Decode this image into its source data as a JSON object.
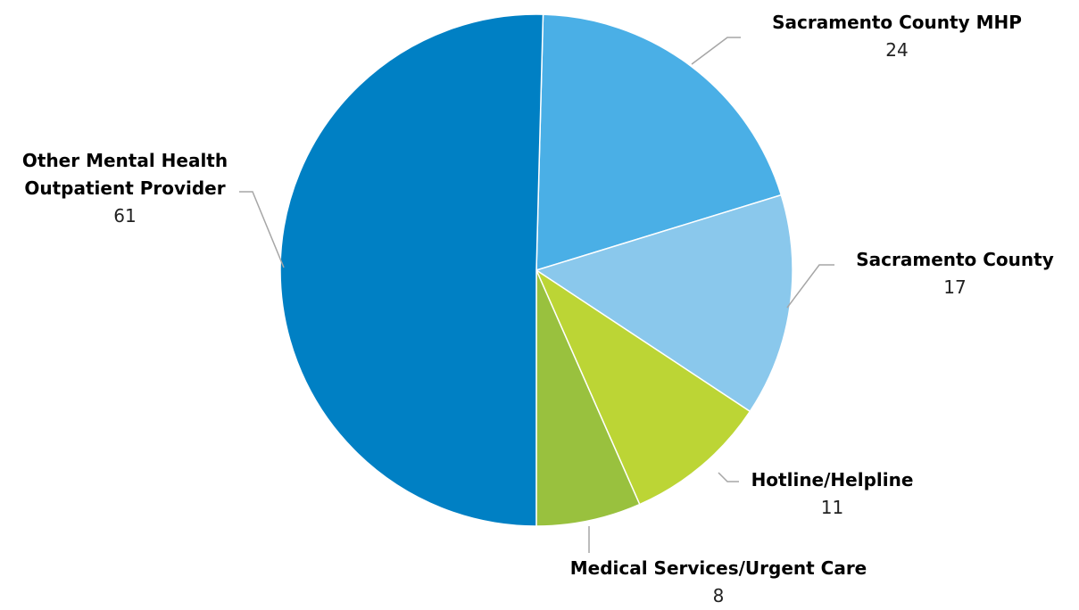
{
  "chart_data": {
    "type": "pie",
    "categories": [
      "Sacramento County MHP",
      "Sacramento County",
      "Hotline/Helpline",
      "Medical Services/Urgent Care",
      "Other Mental Health Outpatient Provider"
    ],
    "values": [
      24,
      17,
      11,
      8,
      61
    ],
    "colors": [
      "#4aafe6",
      "#8ac8ec",
      "#bcd535",
      "#99c13e",
      "#0080c4"
    ]
  }
}
